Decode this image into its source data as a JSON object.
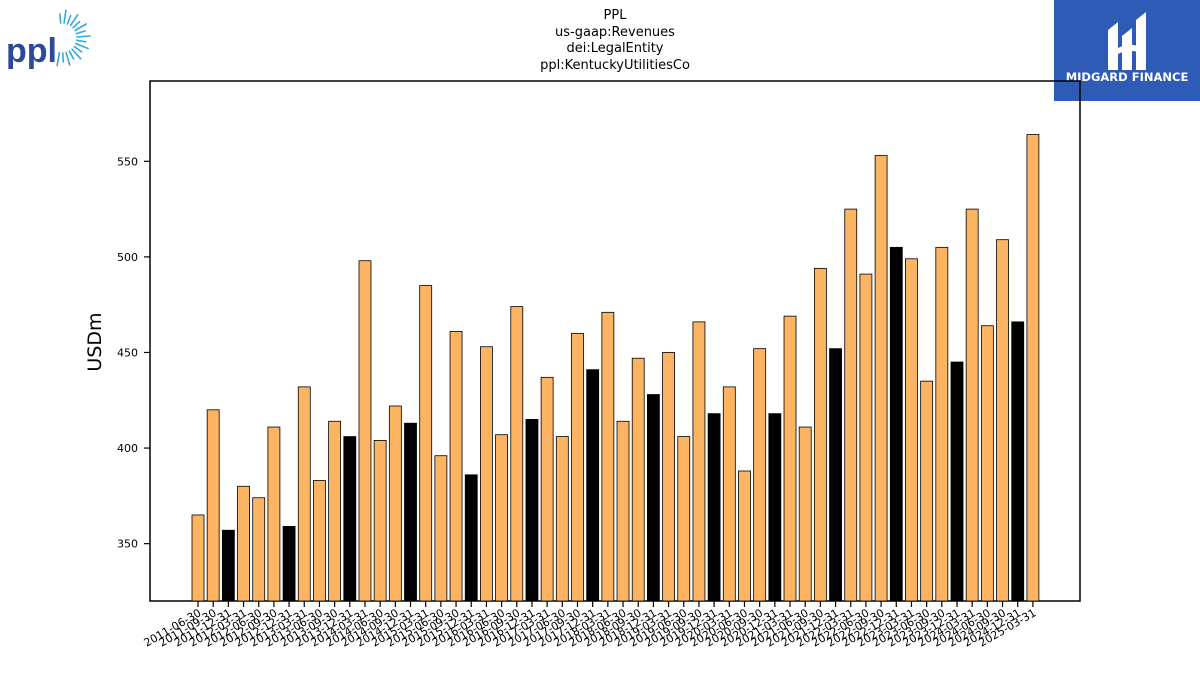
{
  "colors": {
    "bar_default": "#fdb462",
    "bar_highlight": "#000000",
    "ppl_blue": "#2d4a9a",
    "ppl_rays": "#35a8e0",
    "midgard_bg": "#2e5bb5"
  },
  "logos": {
    "left": {
      "icon": "ppl-logo",
      "text": "ppl"
    },
    "right": {
      "icon": "midgard-finance-logo",
      "text": "MIDGARD FINANCE"
    }
  },
  "chart_data": {
    "type": "bar",
    "title_lines": [
      "PPL",
      "us-gaap:Revenues",
      "dei:LegalEntity",
      "ppl:KentuckyUtilitiesCo"
    ],
    "xlabel": "",
    "ylabel": "USDm",
    "ylim": [
      320,
      592
    ],
    "yticks": [
      350,
      400,
      450,
      500,
      550
    ],
    "grid": false,
    "categories": [
      "2011-06-30",
      "2011-09-30",
      "2011-12-31",
      "2012-03-31",
      "2012-06-30",
      "2012-09-30",
      "2012-12-31",
      "2013-03-31",
      "2013-06-30",
      "2013-09-30",
      "2013-12-31",
      "2014-03-31",
      "2014-06-30",
      "2014-09-30",
      "2014-12-31",
      "2015-03-31",
      "2015-06-30",
      "2015-09-30",
      "2015-12-31",
      "2016-03-31",
      "2016-06-30",
      "2016-09-30",
      "2016-12-31",
      "2017-03-31",
      "2017-06-30",
      "2017-09-30",
      "2017-12-31",
      "2018-03-31",
      "2018-06-30",
      "2018-09-30",
      "2018-12-31",
      "2019-03-31",
      "2019-06-30",
      "2019-09-30",
      "2019-12-31",
      "2020-03-31",
      "2020-06-30",
      "2020-09-30",
      "2020-12-31",
      "2021-03-31",
      "2021-06-30",
      "2021-09-30",
      "2021-12-31",
      "2022-03-31",
      "2022-06-30",
      "2022-09-30",
      "2022-12-31",
      "2023-03-31",
      "2023-06-30",
      "2023-09-30",
      "2023-12-31",
      "2024-03-31",
      "2024-06-30",
      "2024-09-30",
      "2024-12-31",
      "2025-03-31"
    ],
    "values": [
      365,
      420,
      357,
      380,
      374,
      411,
      359,
      432,
      383,
      414,
      406,
      498,
      404,
      422,
      413,
      485,
      396,
      461,
      386,
      453,
      407,
      474,
      415,
      437,
      406,
      460,
      441,
      471,
      414,
      447,
      428,
      450,
      406,
      466,
      418,
      432,
      388,
      452,
      418,
      469,
      411,
      494,
      452,
      525,
      491,
      553,
      505,
      499,
      435,
      505,
      445,
      525,
      464,
      509,
      466,
      564
    ],
    "highlight_indices": [
      2,
      6,
      10,
      14,
      18,
      22,
      26,
      30,
      34,
      38,
      42,
      46,
      50,
      54
    ]
  }
}
